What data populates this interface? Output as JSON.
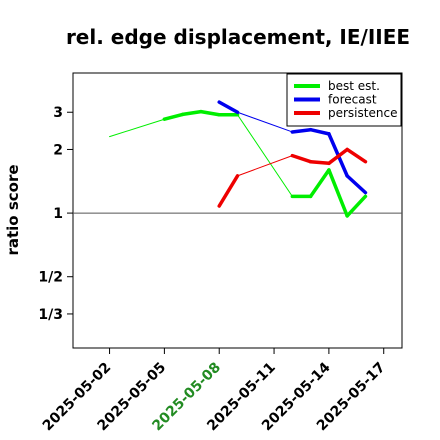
{
  "chart_data": {
    "type": "line",
    "title": "rel. edge displacement, IE/IIEE",
    "xlabel": "",
    "ylabel": "ratio score",
    "y_scale": "log",
    "y_ticks": [
      {
        "value": 3,
        "label": "3"
      },
      {
        "value": 2,
        "label": "2"
      },
      {
        "value": 1,
        "label": "1"
      },
      {
        "value": 0.5,
        "label": "1/2"
      },
      {
        "value": 0.3333,
        "label": "1/3"
      }
    ],
    "ylim": [
      0.23,
      4.6
    ],
    "x_ticks": [
      {
        "value": "2025-05-02",
        "label": "2025-05-02",
        "color": "#000000"
      },
      {
        "value": "2025-05-05",
        "label": "2025-05-05",
        "color": "#000000"
      },
      {
        "value": "2025-05-08",
        "label": "2025-05-08",
        "color": "#228b22"
      },
      {
        "value": "2025-05-11",
        "label": "2025-05-11",
        "color": "#000000"
      },
      {
        "value": "2025-05-14",
        "label": "2025-05-14",
        "color": "#000000"
      },
      {
        "value": "2025-05-17",
        "label": "2025-05-17",
        "color": "#000000"
      }
    ],
    "xlim": [
      "2025-04-30",
      "2025-05-18"
    ],
    "reference_line": 1,
    "legend_position": "top-right",
    "series": [
      {
        "name": "best est.",
        "color": "#00ee00",
        "points": [
          {
            "x": "2025-05-02",
            "y": 2.3
          },
          {
            "x": "2025-05-05",
            "y": 2.78
          },
          {
            "x": "2025-05-06",
            "y": 2.93
          },
          {
            "x": "2025-05-07",
            "y": 3.02
          },
          {
            "x": "2025-05-08",
            "y": 2.92
          },
          {
            "x": "2025-05-09",
            "y": 2.92
          },
          {
            "x": "2025-05-12",
            "y": 1.2
          },
          {
            "x": "2025-05-13",
            "y": 1.2
          },
          {
            "x": "2025-05-14",
            "y": 1.6
          },
          {
            "x": "2025-05-15",
            "y": 0.97
          },
          {
            "x": "2025-05-16",
            "y": 1.2
          }
        ]
      },
      {
        "name": "forecast",
        "color": "#0000ee",
        "points": [
          {
            "x": "2025-05-08",
            "y": 3.35
          },
          {
            "x": "2025-05-09",
            "y": 3.0
          },
          {
            "x": "2025-05-12",
            "y": 2.42
          },
          {
            "x": "2025-05-13",
            "y": 2.48
          },
          {
            "x": "2025-05-14",
            "y": 2.37
          },
          {
            "x": "2025-05-15",
            "y": 1.5
          },
          {
            "x": "2025-05-16",
            "y": 1.25
          }
        ]
      },
      {
        "name": "persistence",
        "color": "#ee0000",
        "points": [
          {
            "x": "2025-05-08",
            "y": 1.08
          },
          {
            "x": "2025-05-09",
            "y": 1.5
          },
          {
            "x": "2025-05-12",
            "y": 1.87
          },
          {
            "x": "2025-05-13",
            "y": 1.75
          },
          {
            "x": "2025-05-14",
            "y": 1.72
          },
          {
            "x": "2025-05-15",
            "y": 2.0
          },
          {
            "x": "2025-05-16",
            "y": 1.75
          }
        ]
      }
    ]
  }
}
